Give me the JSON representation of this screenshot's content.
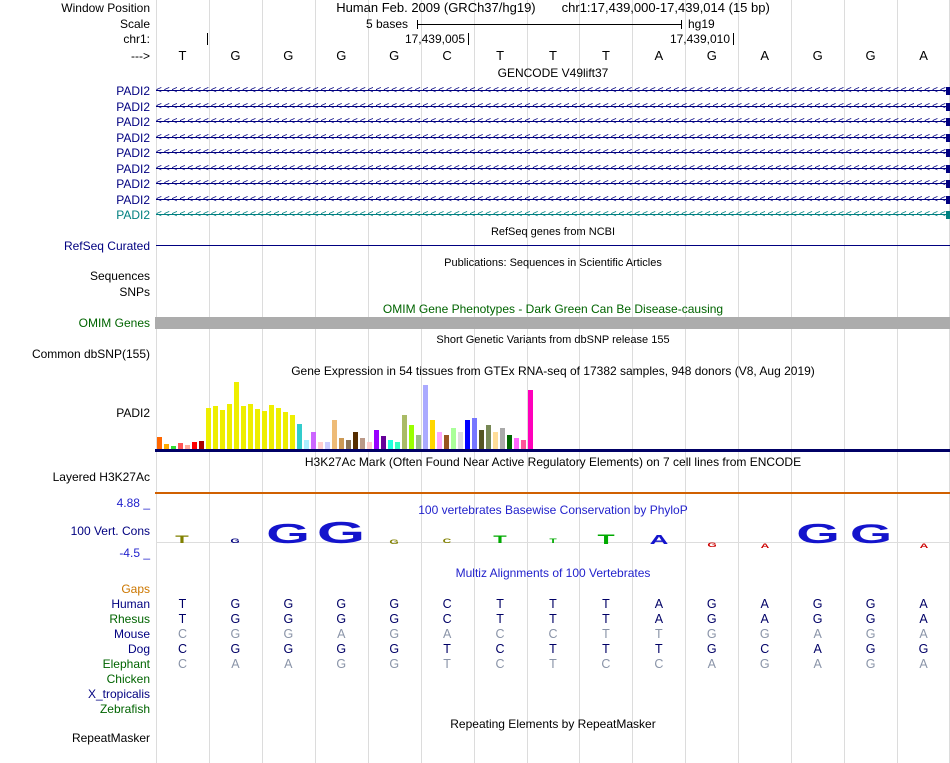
{
  "colors": {
    "track_navy": "#000080",
    "teal": "#008080",
    "omim_green": "#006400",
    "title_blue": "#2222CC",
    "gaps_orange": "#CC7700",
    "grid_line": "#DCDCDC",
    "h3k27ac_line": "#D06000",
    "omim_bar": "#ACACAC",
    "gtex_baseline": "#000066"
  },
  "header": {
    "window_position_label": "Window Position",
    "scale_label": "Scale",
    "chrom_label": "chr1:",
    "strand_label": "--->",
    "assembly_text": "Human Feb. 2009 (GRCh37/hg19)",
    "position_text": "chr1:17,439,000-17,439,014 (15 bp)",
    "scale_text": "5 bases",
    "assembly_short": "hg19",
    "coordinates": [
      "17,439,005",
      "17,439,010"
    ],
    "bases": [
      "T",
      "G",
      "G",
      "G",
      "G",
      "C",
      "T",
      "T",
      "T",
      "A",
      "G",
      "A",
      "G",
      "G",
      "A"
    ]
  },
  "tracks": {
    "gencode": {
      "title": "GENCODE V49lift37",
      "genes": [
        {
          "label": "PADI2",
          "color": "#000080"
        },
        {
          "label": "PADI2",
          "color": "#000080"
        },
        {
          "label": "PADI2",
          "color": "#000080"
        },
        {
          "label": "PADI2",
          "color": "#000080"
        },
        {
          "label": "PADI2",
          "color": "#000080"
        },
        {
          "label": "PADI2",
          "color": "#000080"
        },
        {
          "label": "PADI2",
          "color": "#000080"
        },
        {
          "label": "PADI2",
          "color": "#000080"
        },
        {
          "label": "PADI2",
          "color": "#008080"
        }
      ]
    },
    "refseq": {
      "title": "RefSeq genes from NCBI",
      "label": "RefSeq Curated"
    },
    "publications": {
      "title": "Publications: Sequences in Scientific Articles",
      "label": "Sequences"
    },
    "snps": {
      "label": "SNPs"
    },
    "omim": {
      "title": "OMIM Gene Phenotypes - Dark Green Can Be Disease-causing",
      "label": "OMIM Genes"
    },
    "dbsnp": {
      "title": "Short Genetic Variants from dbSNP release 155",
      "label": "Common dbSNP(155)"
    },
    "gtex": {
      "title": "Gene Expression in 54 tissues from GTEx RNA-seq of 17382 samples, 948 donors (V8, Aug 2019)",
      "label": "PADI2"
    },
    "h3k27ac": {
      "title": "H3K27Ac Mark (Often Found Near Active Regulatory Elements) on 7 cell lines from ENCODE",
      "label": "Layered H3K27Ac"
    },
    "conservation": {
      "title": "100 vertebrates Basewise Conservation by PhyloP",
      "label": "100 Vert. Cons",
      "max_label": "4.88 _",
      "min_label": "-4.5 _",
      "glyphs": [
        {
          "base": "T",
          "color": "#808000",
          "h": 8,
          "neg": false
        },
        {
          "base": "G",
          "color": "#000080",
          "h": 4,
          "neg": false
        },
        {
          "base": "G",
          "color": "#1414CC",
          "h": 20,
          "neg": false
        },
        {
          "base": "G",
          "color": "#1414CC",
          "h": 22,
          "neg": false
        },
        {
          "base": "G",
          "color": "#808000",
          "h": 2,
          "neg": false
        },
        {
          "base": "C",
          "color": "#808000",
          "h": 4,
          "neg": false
        },
        {
          "base": "T",
          "color": "#00AA00",
          "h": 8,
          "neg": false
        },
        {
          "base": "T",
          "color": "#00AA00",
          "h": 3,
          "neg": false
        },
        {
          "base": "T",
          "color": "#00AA00",
          "h": 10,
          "neg": false
        },
        {
          "base": "A",
          "color": "#1414CC",
          "h": 9,
          "neg": false
        },
        {
          "base": "G",
          "color": "#CC0000",
          "h": 3,
          "neg": true
        },
        {
          "base": "A",
          "color": "#CC0000",
          "h": 4,
          "neg": true
        },
        {
          "base": "G",
          "color": "#1414CC",
          "h": 20,
          "neg": false
        },
        {
          "base": "G",
          "color": "#1414CC",
          "h": 19,
          "neg": false
        },
        {
          "base": "A",
          "color": "#CC0000",
          "h": 4,
          "neg": true
        }
      ]
    },
    "multiz": {
      "title": "Multiz Alignments of 100 Vertebrates",
      "rows": [
        {
          "name": "Gaps",
          "label_color": "#CC7700",
          "base_color": "#000066",
          "bases": [
            "",
            "",
            "",
            "",
            "",
            "",
            "",
            "",
            "",
            "",
            "",
            "",
            "",
            "",
            ""
          ]
        },
        {
          "name": "Human",
          "label_color": "#000080",
          "base_color": "#000066",
          "bases": [
            "T",
            "G",
            "G",
            "G",
            "G",
            "C",
            "T",
            "T",
            "T",
            "A",
            "G",
            "A",
            "G",
            "G",
            "A"
          ]
        },
        {
          "name": "Rhesus",
          "label_color": "#006400",
          "base_color": "#000066",
          "bases": [
            "T",
            "G",
            "G",
            "G",
            "G",
            "C",
            "T",
            "T",
            "T",
            "A",
            "G",
            "A",
            "G",
            "G",
            "A"
          ]
        },
        {
          "name": "Mouse",
          "label_color": "#000080",
          "base_color": "#8A94A8",
          "bases": [
            "C",
            "G",
            "G",
            "A",
            "G",
            "A",
            "C",
            "C",
            "T",
            "T",
            "G",
            "G",
            "A",
            "G",
            "A"
          ]
        },
        {
          "name": "Dog",
          "label_color": "#000080",
          "base_color": "#000066",
          "bases": [
            "C",
            "G",
            "G",
            "G",
            "G",
            "T",
            "C",
            "T",
            "T",
            "T",
            "G",
            "C",
            "A",
            "G",
            "G"
          ]
        },
        {
          "name": "Elephant",
          "label_color": "#006400",
          "base_color": "#8A94A8",
          "bases": [
            "C",
            "A",
            "A",
            "G",
            "G",
            "T",
            "C",
            "T",
            "C",
            "C",
            "A",
            "G",
            "A",
            "G",
            "A"
          ]
        },
        {
          "name": "Chicken",
          "label_color": "#006400",
          "base_color": "#8A94A8",
          "bases": [
            "",
            "",
            "",
            "",
            "",
            "",
            "",
            "",
            "",
            "",
            "",
            "",
            "",
            "",
            ""
          ]
        },
        {
          "name": "X_tropicalis",
          "label_color": "#000080",
          "base_color": "#8A94A8",
          "bases": [
            "",
            "",
            "",
            "",
            "",
            "",
            "",
            "",
            "",
            "",
            "",
            "",
            "",
            "",
            ""
          ]
        },
        {
          "name": "Zebrafish",
          "label_color": "#006400",
          "base_color": "#8A94A8",
          "bases": [
            "",
            "",
            "",
            "",
            "",
            "",
            "",
            "",
            "",
            "",
            "",
            "",
            "",
            "",
            ""
          ]
        }
      ]
    },
    "repeatmasker": {
      "title": "Repeating Elements by RepeatMasker",
      "label": "RepeatMasker"
    }
  },
  "chart_data": {
    "type": "bar",
    "title": "Gene Expression in 54 tissues from GTEx RNA-seq of 17382 samples, 948 donors (V8, Aug 2019)",
    "gene": "PADI2",
    "bar_count": 54,
    "ylim": [
      0,
      70
    ],
    "values": [
      13,
      6,
      4,
      7,
      5,
      8,
      9,
      42,
      44,
      40,
      46,
      68,
      44,
      46,
      41,
      39,
      45,
      42,
      38,
      35,
      26,
      10,
      18,
      8,
      8,
      30,
      12,
      10,
      18,
      12,
      8,
      20,
      14,
      10,
      8,
      35,
      25,
      15,
      65,
      30,
      18,
      15,
      22,
      18,
      30,
      32,
      20,
      25,
      18,
      22,
      15,
      12,
      10,
      60
    ],
    "colors": [
      "#FF6600",
      "#FFAA00",
      "#33DD33",
      "#FF5555",
      "#FFAA99",
      "#FF0000",
      "#AA0000",
      "#EEEE00",
      "#EEEE00",
      "#EEEE00",
      "#EEEE00",
      "#EEEE00",
      "#EEEE00",
      "#EEEE00",
      "#EEEE00",
      "#EEEE00",
      "#EEEE00",
      "#EEEE00",
      "#EEEE00",
      "#EEEE00",
      "#33CCCC",
      "#AAEEFF",
      "#CC66FF",
      "#FFCCCC",
      "#CCCCFF",
      "#EEBB77",
      "#CC9955",
      "#8B7355",
      "#552D00",
      "#BB9988",
      "#FFCCCC",
      "#9900FF",
      "#660099",
      "#22FFDD",
      "#33FFC2",
      "#AABB66",
      "#99FF00",
      "#99BB88",
      "#AAAAFF",
      "#FFD700",
      "#FFAAFF",
      "#995522",
      "#AAFF99",
      "#DDDDDD",
      "#0000FF",
      "#7777FF",
      "#555522",
      "#778855",
      "#FFDD99",
      "#AAAAAA",
      "#006600",
      "#FF66FF",
      "#FF5599",
      "#FF00BB"
    ]
  }
}
